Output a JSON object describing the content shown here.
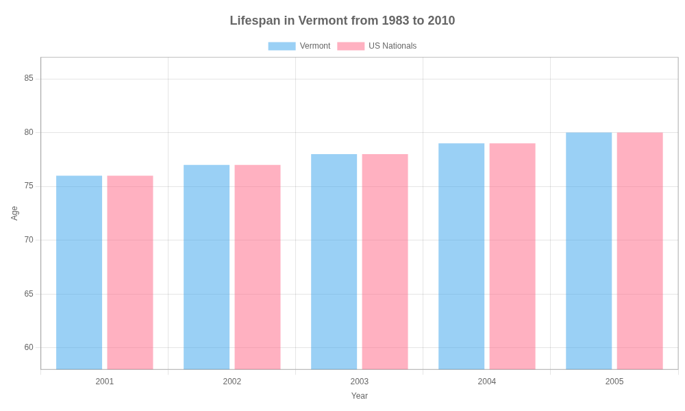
{
  "chart_data": {
    "type": "bar",
    "title": "Lifespan in Vermont from 1983 to 2010",
    "xlabel": "Year",
    "ylabel": "Age",
    "categories": [
      "2001",
      "2002",
      "2003",
      "2004",
      "2005"
    ],
    "series": [
      {
        "name": "Vermont",
        "values": [
          76,
          77,
          78,
          79,
          80
        ]
      },
      {
        "name": "US Nationals",
        "values": [
          76,
          77,
          78,
          79,
          80
        ]
      }
    ],
    "ylim": [
      58,
      87
    ],
    "yticks": [
      60,
      65,
      70,
      75,
      80,
      85
    ],
    "grid": true,
    "legend": "top"
  }
}
